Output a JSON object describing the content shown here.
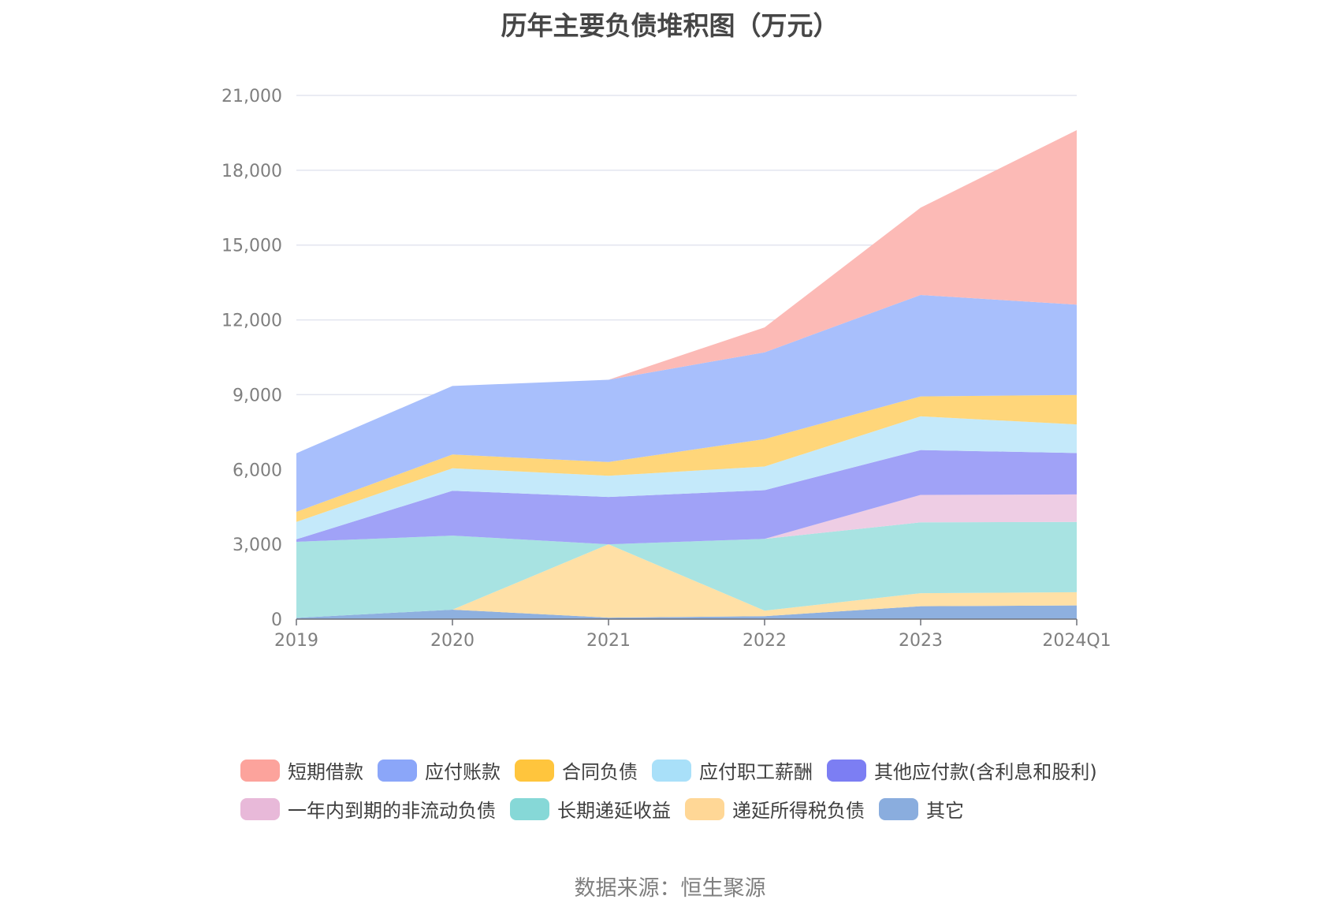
{
  "chart_data": {
    "type": "area",
    "stacked": true,
    "title": "历年主要负债堆积图（万元）",
    "source": "数据来源：恒生聚源",
    "categories": [
      "2019",
      "2020",
      "2021",
      "2022",
      "2023",
      "2024Q1"
    ],
    "ylim": [
      0,
      21000
    ],
    "yticks": [
      "0",
      "3,000",
      "6,000",
      "9,000",
      "12,000",
      "15,000",
      "18,000",
      "21,000"
    ],
    "ytick_values": [
      0,
      3000,
      6000,
      9000,
      12000,
      15000,
      18000,
      21000
    ],
    "grid": true,
    "legend_position": "bottom",
    "series": [
      {
        "name": "其它",
        "color": "#8eb0df",
        "values": [
          50,
          380,
          60,
          120,
          520,
          550
        ]
      },
      {
        "name": "递延所得税负债",
        "color": "#ffe0a6",
        "values": [
          0,
          0,
          2940,
          220,
          520,
          530
        ]
      },
      {
        "name": "长期递延收益",
        "color": "#a8e3e2",
        "values": [
          3050,
          2970,
          0,
          2880,
          2840,
          2820
        ]
      },
      {
        "name": "一年内到期的非流动负债",
        "color": "#eecde4",
        "values": [
          0,
          0,
          0,
          0,
          1100,
          1100
        ]
      },
      {
        "name": "其他应付款(含利息和股利)",
        "color": "#a0a2f7",
        "values": [
          100,
          1800,
          1900,
          1950,
          1800,
          1660
        ]
      },
      {
        "name": "应付职工薪酬",
        "color": "#c4e9fa",
        "values": [
          700,
          900,
          850,
          950,
          1350,
          1150
        ]
      },
      {
        "name": "合同负债",
        "color": "#ffd67a",
        "values": [
          400,
          550,
          550,
          1100,
          800,
          1180
        ]
      },
      {
        "name": "应付账款",
        "color": "#a8bffc",
        "values": [
          2350,
          2750,
          3300,
          3480,
          4070,
          3620
        ]
      },
      {
        "name": "短期借款",
        "color": "#fcbab6",
        "values": [
          0,
          0,
          0,
          1000,
          3500,
          7000
        ]
      }
    ],
    "legend": [
      {
        "name": "短期借款",
        "color": "#fca39c"
      },
      {
        "name": "应付账款",
        "color": "#8ba6f9"
      },
      {
        "name": "合同负债",
        "color": "#ffc53d"
      },
      {
        "name": "应付职工薪酬",
        "color": "#a9e0f9"
      },
      {
        "name": "其他应付款(含利息和股利)",
        "color": "#7c7ef3"
      },
      {
        "name": "一年内到期的非流动负债",
        "color": "#e8b9d9"
      },
      {
        "name": "长期递延收益",
        "color": "#86d8d7"
      },
      {
        "name": "递延所得税负债",
        "color": "#ffd796"
      },
      {
        "name": "其它",
        "color": "#8aadde"
      }
    ]
  }
}
